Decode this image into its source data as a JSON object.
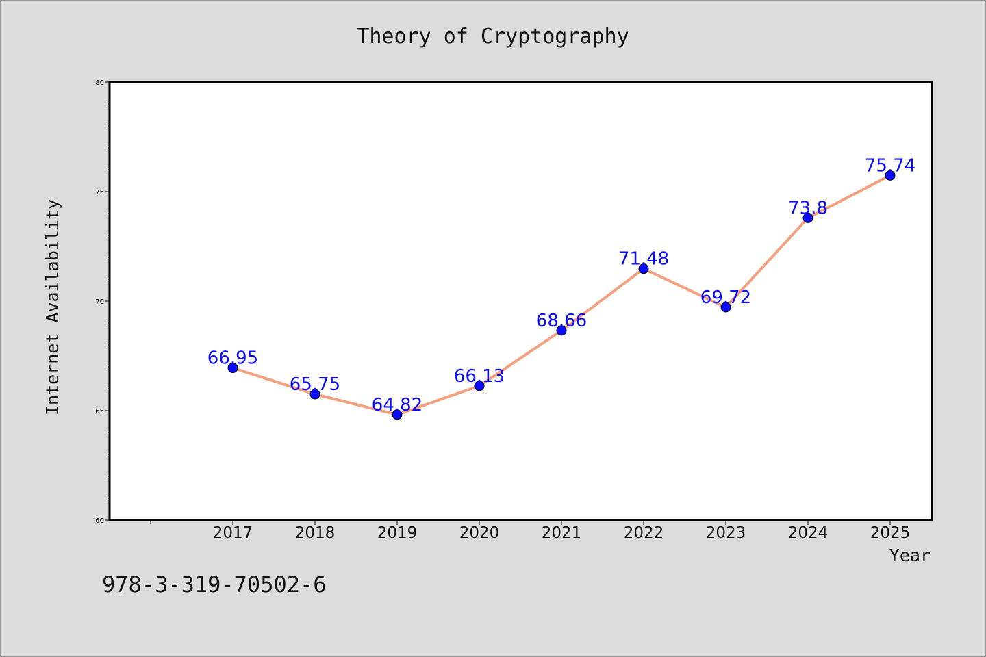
{
  "chart_data": {
    "type": "line",
    "title": "Theory of Cryptography",
    "xlabel": "Year",
    "ylabel": "Internet Availability",
    "categories": [
      "2017",
      "2018",
      "2019",
      "2020",
      "2021",
      "2022",
      "2023",
      "2024",
      "2025"
    ],
    "series": [
      {
        "values": [
          66.95,
          65.75,
          64.82,
          66.13,
          68.66,
          71.48,
          69.72,
          73.8,
          75.74
        ],
        "data_labels": [
          "66.95",
          "65.75",
          "64.82",
          "66.13",
          "68.66",
          "71.48",
          "69.72",
          "73.8",
          "75.74"
        ],
        "line_color": "#f4a07e",
        "marker_color": "#0a0aff",
        "label_color": "#0a0aff"
      }
    ],
    "ylim": [
      60,
      80
    ],
    "yticks": [
      60,
      65,
      70,
      75,
      80
    ],
    "grid": false,
    "legend": "none"
  },
  "footer": {
    "isbn": "978-3-319-70502-6"
  },
  "colors": {
    "background": "#dcdcdc",
    "plot_background": "#ffffff"
  }
}
